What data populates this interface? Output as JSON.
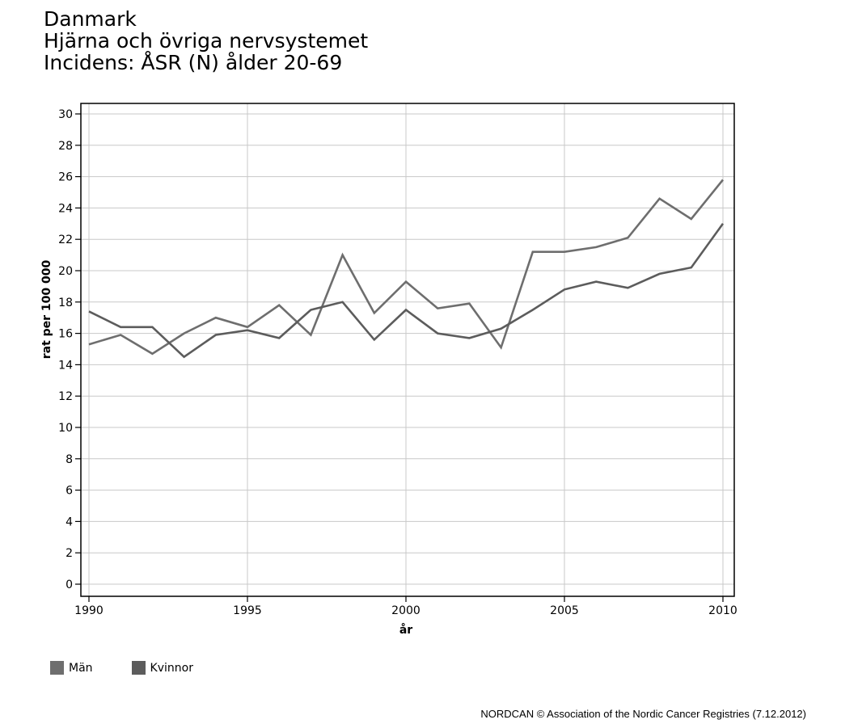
{
  "header": {
    "line1": "Danmark",
    "line2": "Hjärna och övriga nervsystemet",
    "line3": "Incidens: ÅSR (N) ålder 20-69"
  },
  "footer": {
    "credit": "NORDCAN © Association of the Nordic Cancer Registries (7.12.2012)"
  },
  "chart_data": {
    "type": "line",
    "title": "Danmark / Hjärna och övriga nervsystemet / Incidens: ÅSR (N) ålder 20-69",
    "xlabel": "år",
    "ylabel": "rat per 100 000",
    "xlim": [
      1990,
      2010
    ],
    "ylim": [
      0,
      30
    ],
    "xticks": [
      1990,
      1995,
      2000,
      2005,
      2010
    ],
    "yticks": [
      0,
      2,
      4,
      6,
      8,
      10,
      12,
      14,
      16,
      18,
      20,
      22,
      24,
      26,
      28,
      30
    ],
    "grid": true,
    "legend_position": "bottom-left",
    "x": [
      1990,
      1991,
      1992,
      1993,
      1994,
      1995,
      1996,
      1997,
      1998,
      1999,
      2000,
      2001,
      2002,
      2003,
      2004,
      2005,
      2006,
      2007,
      2008,
      2009,
      2010
    ],
    "series": [
      {
        "name": "Män",
        "color": "#6e6e6e",
        "values": [
          15.3,
          15.9,
          14.7,
          16.0,
          17.0,
          16.4,
          17.8,
          15.9,
          21.0,
          17.3,
          19.3,
          17.6,
          17.9,
          15.1,
          21.2,
          21.2,
          21.5,
          22.1,
          24.6,
          23.3,
          25.8
        ]
      },
      {
        "name": "Kvinnor",
        "color": "#5c5c5c",
        "values": [
          17.4,
          16.4,
          16.4,
          14.5,
          15.9,
          16.2,
          15.7,
          17.5,
          18.0,
          15.6,
          17.5,
          16.0,
          15.7,
          16.3,
          17.5,
          18.8,
          19.3,
          18.9,
          19.8,
          20.2,
          23.0
        ]
      }
    ]
  }
}
